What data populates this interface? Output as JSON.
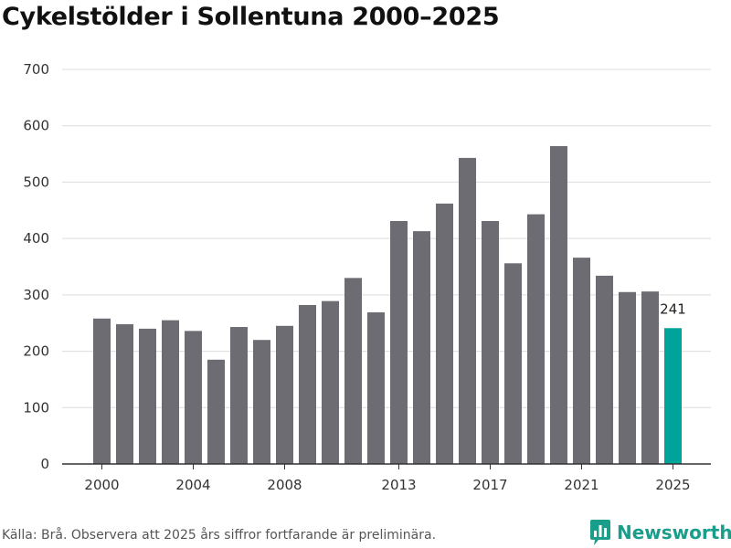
{
  "title": "Cykelstölder i Sollentuna 2000–2025",
  "footer": "Källa: Brå. Observera att 2025 års siffror fortfarande är preliminära.",
  "brand": {
    "name": "Newsworthy",
    "icon": "bar-chart-bubble-icon"
  },
  "colors": {
    "bar": "#6d6c72",
    "highlight": "#00a39a",
    "grid": "#dcdcdc",
    "axis": "#333333",
    "brand": "#1a9e8c"
  },
  "chart_data": {
    "type": "bar",
    "title": "Cykelstölder i Sollentuna 2000–2025",
    "xlabel": "",
    "ylabel": "",
    "x": [
      2000,
      2001,
      2002,
      2003,
      2004,
      2005,
      2006,
      2007,
      2008,
      2009,
      2010,
      2011,
      2012,
      2013,
      2014,
      2015,
      2016,
      2017,
      2018,
      2019,
      2020,
      2021,
      2022,
      2023,
      2024,
      2025
    ],
    "values": [
      258,
      248,
      240,
      255,
      236,
      185,
      243,
      220,
      245,
      282,
      289,
      330,
      269,
      431,
      413,
      462,
      543,
      431,
      356,
      443,
      564,
      366,
      334,
      305,
      306,
      241
    ],
    "highlight": {
      "x": 2025,
      "label": "241"
    },
    "x_ticks": [
      "2000",
      "2004",
      "2008",
      "2013",
      "2017",
      "2021",
      "2025"
    ],
    "y_ticks": [
      0,
      100,
      200,
      300,
      400,
      500,
      600,
      700
    ],
    "ylim": [
      0,
      700
    ],
    "grid": true,
    "legend": false
  }
}
